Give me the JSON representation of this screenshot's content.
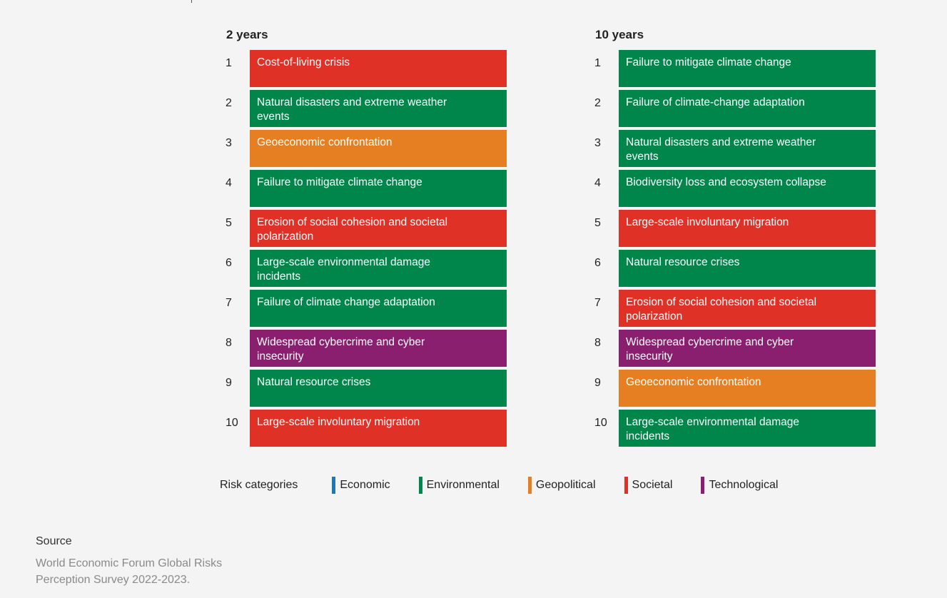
{
  "chart_data": {
    "type": "table",
    "columns": [
      {
        "title": "2 years",
        "items": [
          {
            "rank": "1",
            "label": "Cost-of-living crisis",
            "category": "Societal"
          },
          {
            "rank": "2",
            "label": "Natural disasters and extreme weather events",
            "category": "Environmental"
          },
          {
            "rank": "3",
            "label": "Geoeconomic confrontation",
            "category": "Geopolitical"
          },
          {
            "rank": "4",
            "label": "Failure to mitigate climate change",
            "category": "Environmental"
          },
          {
            "rank": "5",
            "label": "Erosion of social cohesion and societal polarization",
            "category": "Societal"
          },
          {
            "rank": "6",
            "label": "Large-scale environmental damage incidents",
            "category": "Environmental"
          },
          {
            "rank": "7",
            "label": "Failure of climate change adaptation",
            "category": "Environmental"
          },
          {
            "rank": "8",
            "label": "Widespread cybercrime and cyber insecurity",
            "category": "Technological"
          },
          {
            "rank": "9",
            "label": "Natural resource crises",
            "category": "Environmental"
          },
          {
            "rank": "10",
            "label": "Large-scale involuntary migration",
            "category": "Societal"
          }
        ]
      },
      {
        "title": "10 years",
        "items": [
          {
            "rank": "1",
            "label": "Failure to mitigate climate change",
            "category": "Environmental"
          },
          {
            "rank": "2",
            "label": "Failure of climate-change adaptation",
            "category": "Environmental"
          },
          {
            "rank": "3",
            "label": "Natural disasters and extreme weather events",
            "category": "Environmental"
          },
          {
            "rank": "4",
            "label": "Biodiversity loss and ecosystem collapse",
            "category": "Environmental"
          },
          {
            "rank": "5",
            "label": "Large-scale involuntary migration",
            "category": "Societal"
          },
          {
            "rank": "6",
            "label": "Natural resource crises",
            "category": "Environmental"
          },
          {
            "rank": "7",
            "label": "Erosion of social cohesion and societal polarization",
            "category": "Societal"
          },
          {
            "rank": "8",
            "label": "Widespread cybercrime and cyber insecurity",
            "category": "Technological"
          },
          {
            "rank": "9",
            "label": "Geoeconomic confrontation",
            "category": "Geopolitical"
          },
          {
            "rank": "10",
            "label": "Large-scale environmental damage incidents",
            "category": "Environmental"
          }
        ]
      }
    ],
    "legend": {
      "title": "Risk categories",
      "position": "bottom",
      "categories": [
        {
          "name": "Economic",
          "color": "#1f77b4"
        },
        {
          "name": "Environmental",
          "color": "#00854a"
        },
        {
          "name": "Geopolitical",
          "color": "#e67e22"
        },
        {
          "name": "Societal",
          "color": "#e03127"
        },
        {
          "name": "Technological",
          "color": "#8b1f6f"
        }
      ]
    }
  },
  "source": {
    "title": "Source",
    "text": "World Economic Forum Global Risks Perception Survey 2022-2023."
  }
}
